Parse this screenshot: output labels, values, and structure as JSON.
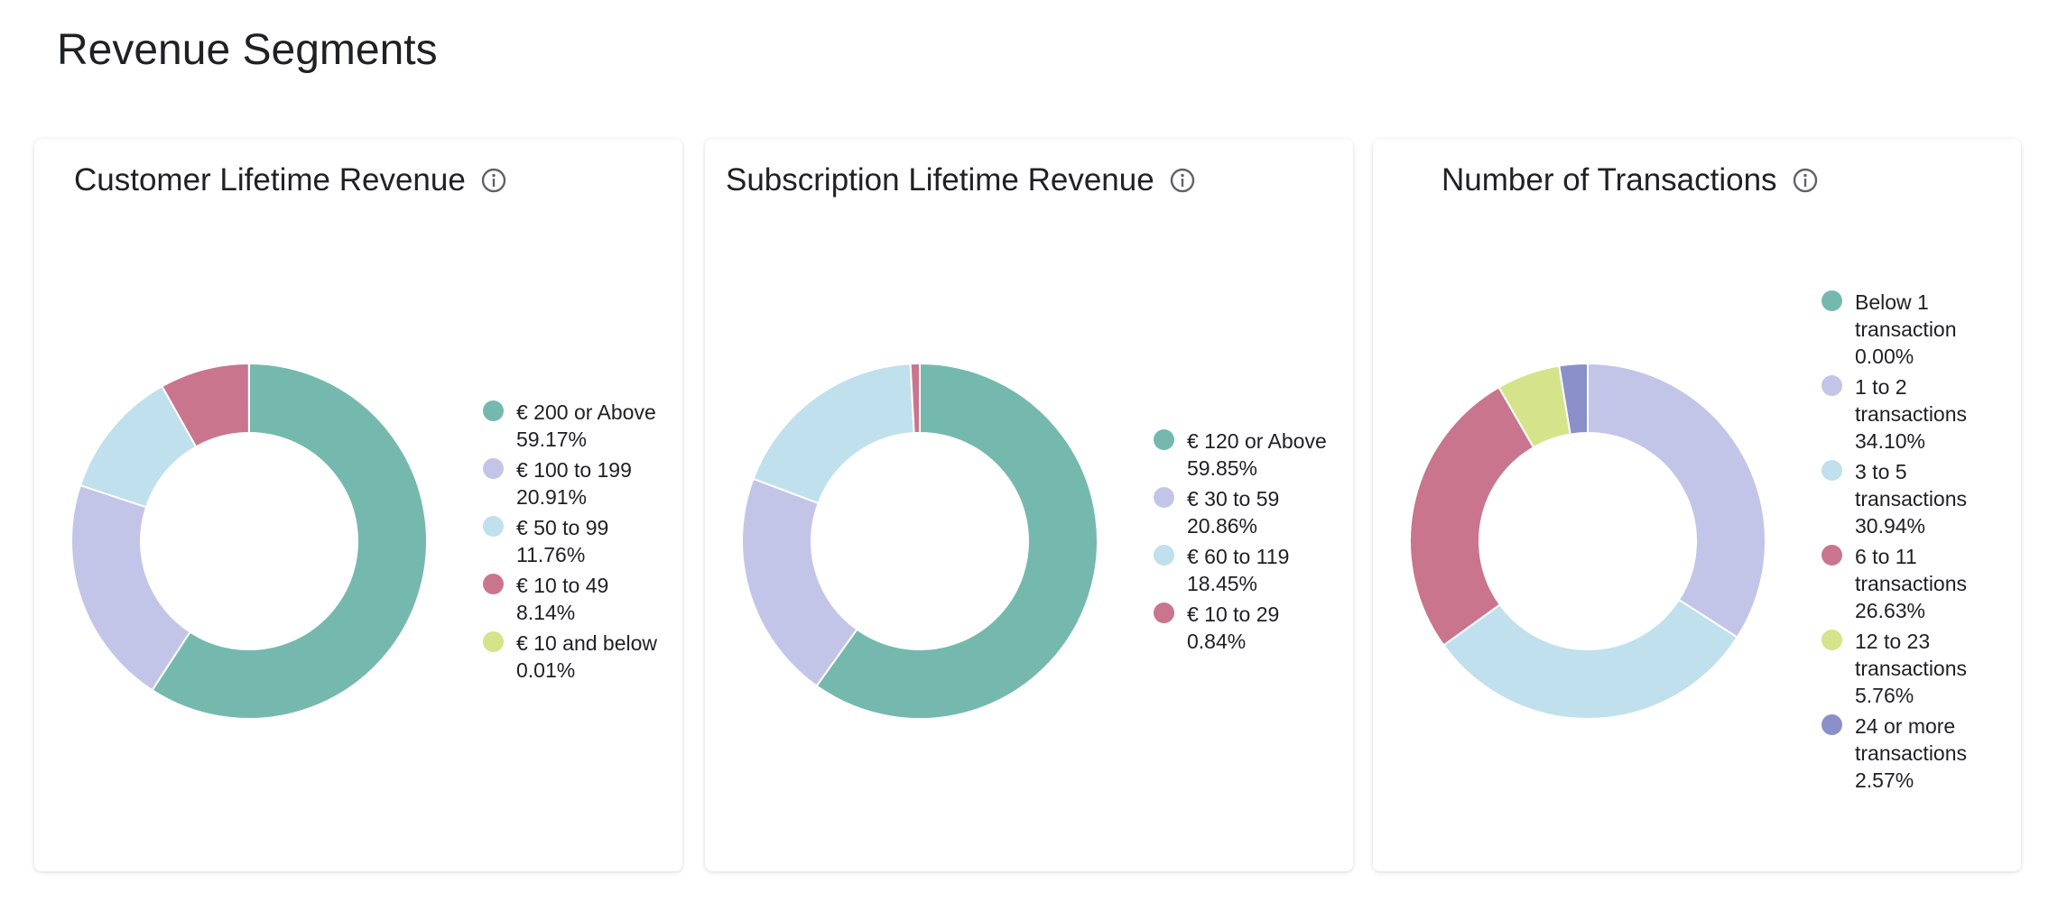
{
  "page_title": "Revenue Segments",
  "chart_data": [
    {
      "type": "donut",
      "title": "Customer Lifetime Revenue",
      "categories": [
        "€ 200 or Above",
        "€ 100 to 199",
        "€ 50 to 99",
        "€ 10 to 49",
        "€ 10 and below"
      ],
      "values": [
        59.17,
        20.91,
        11.76,
        8.14,
        0.01
      ],
      "value_labels": [
        "59.17%",
        "20.91%",
        "11.76%",
        "8.14%",
        "0.01%"
      ],
      "colors": [
        "#75b9ae",
        "#c3c5e8",
        "#bfe0ec",
        "#c9758e",
        "#d5e38b"
      ]
    },
    {
      "type": "donut",
      "title": "Subscription Lifetime Revenue",
      "categories": [
        "€ 120 or Above",
        "€ 30 to 59",
        "€ 60 to 119",
        "€ 10 to 29"
      ],
      "values": [
        59.85,
        20.86,
        18.45,
        0.84
      ],
      "value_labels": [
        "59.85%",
        "20.86%",
        "18.45%",
        "0.84%"
      ],
      "colors": [
        "#75b9ae",
        "#c3c5e8",
        "#bfe0ec",
        "#c9758e"
      ]
    },
    {
      "type": "donut",
      "title": "Number of Transactions",
      "categories": [
        "Below 1 transaction",
        "1 to 2 transactions",
        "3 to 5 transactions",
        "6 to 11 transactions",
        "12 to 23 transactions",
        "24 or more transactions"
      ],
      "values": [
        0,
        34.1,
        30.94,
        26.63,
        5.76,
        2.57
      ],
      "value_labels": [
        "0.00%",
        "34.10%",
        "30.94%",
        "26.63%",
        "5.76%",
        "2.57%"
      ],
      "colors": [
        "#75b9ae",
        "#c3c5e8",
        "#bfe0ec",
        "#c9758e",
        "#d5e38b",
        "#8b8fca"
      ]
    }
  ]
}
